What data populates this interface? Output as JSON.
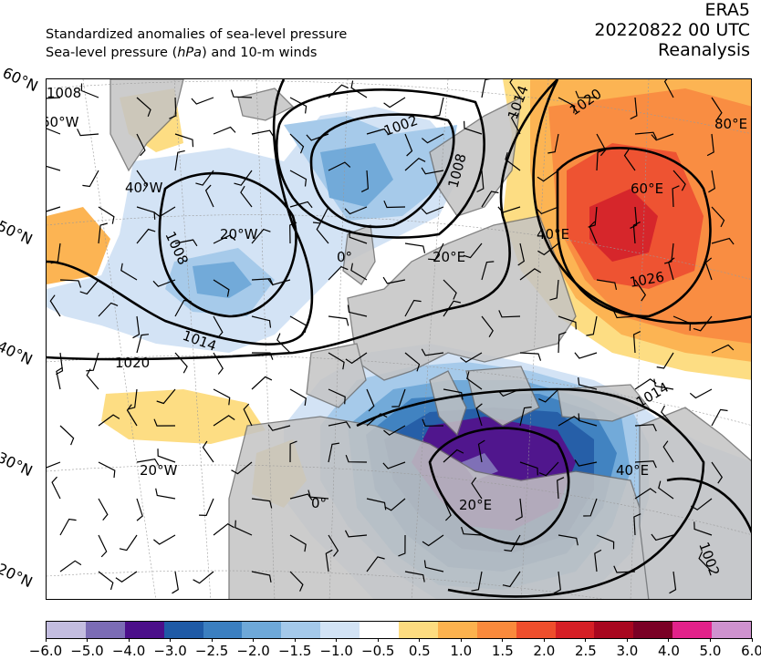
{
  "title": {
    "line1": "Standardized anomalies of sea-level pressure",
    "line2_prefix": "Sea-level pressure (",
    "line2_unit": "hPa",
    "line2_suffix": ") and 10-m winds",
    "model": "ERA5",
    "datetime": "20220822 00 UTC",
    "type": "Reanalysis"
  },
  "lat_labels": [
    "60°N",
    "50°N",
    "40°N",
    "30°N",
    "20°N"
  ],
  "lon_labels": {
    "row_upper": [
      "60°W",
      "40°W",
      "20°W",
      "0°",
      "20°E",
      "40°E",
      "60°E",
      "80°E"
    ],
    "row_lower": [
      "20°W",
      "0°",
      "20°E",
      "40°E"
    ]
  },
  "isobar_labels": [
    "1002",
    "1008",
    "1008",
    "1014",
    "1014",
    "1020",
    "1020",
    "1026",
    "1014",
    "1002",
    "1008"
  ],
  "colorbar": {
    "ticks": [
      "−6.0",
      "−5.0",
      "−4.0",
      "−3.0",
      "−2.5",
      "−2.0",
      "−1.5",
      "−1.0",
      "−0.5",
      "0.5",
      "1.0",
      "1.5",
      "2.0",
      "2.5",
      "3.0",
      "4.0",
      "5.0",
      "6.0"
    ],
    "colors": [
      "#c3bde0",
      "#7b6cb5",
      "#4b0f8a",
      "#1f5aa6",
      "#3b7fc0",
      "#6ea8d8",
      "#a4c9ea",
      "#d2e3f5",
      "#ffffff",
      "#fddc80",
      "#fcb24e",
      "#f98a3c",
      "#ee4e2c",
      "#d51f25",
      "#a8071f",
      "#7a0025",
      "#e2228a",
      "#cf92cf"
    ]
  },
  "colors": {
    "land": "#c4c4c4",
    "coastline": "#6e6e6e",
    "isobar": "#000000"
  }
}
